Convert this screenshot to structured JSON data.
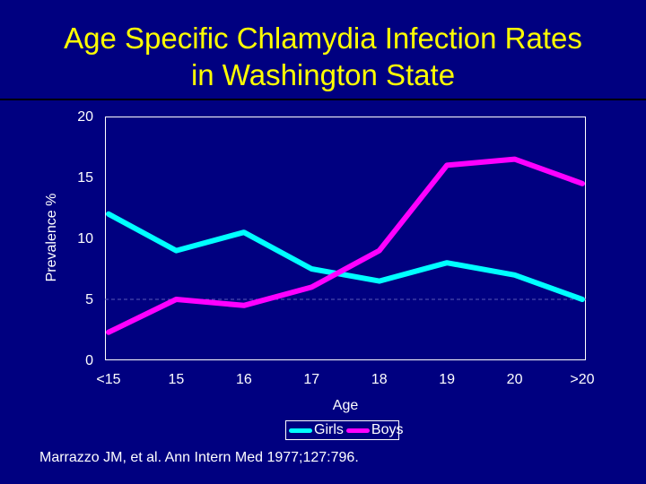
{
  "title_line1": "Age Specific Chlamydia Infection Rates",
  "title_line2": "in Washington State",
  "source": "Marrazzo JM, et al.  Ann Intern Med 1977;127:796.",
  "chart_data": {
    "type": "line",
    "title": "Age Specific Chlamydia Infection Rates in Washington State",
    "xlabel": "Age",
    "ylabel": "Prevalence %",
    "categories": [
      "<15",
      "15",
      "16",
      "17",
      "18",
      "19",
      "20",
      ">20"
    ],
    "ylim": [
      0,
      20
    ],
    "yticks": [
      0,
      5,
      10,
      15,
      20
    ],
    "reference_line": 5,
    "legend_position": "bottom-center",
    "series": [
      {
        "name": "Girls",
        "color": "#00ffff",
        "values": [
          12,
          9,
          10.5,
          7.5,
          6.5,
          8,
          7,
          5
        ]
      },
      {
        "name": "Boys",
        "color": "#ff00ff",
        "values": [
          2.3,
          5,
          4.5,
          6,
          9,
          16,
          16.5,
          14.5
        ]
      }
    ]
  }
}
